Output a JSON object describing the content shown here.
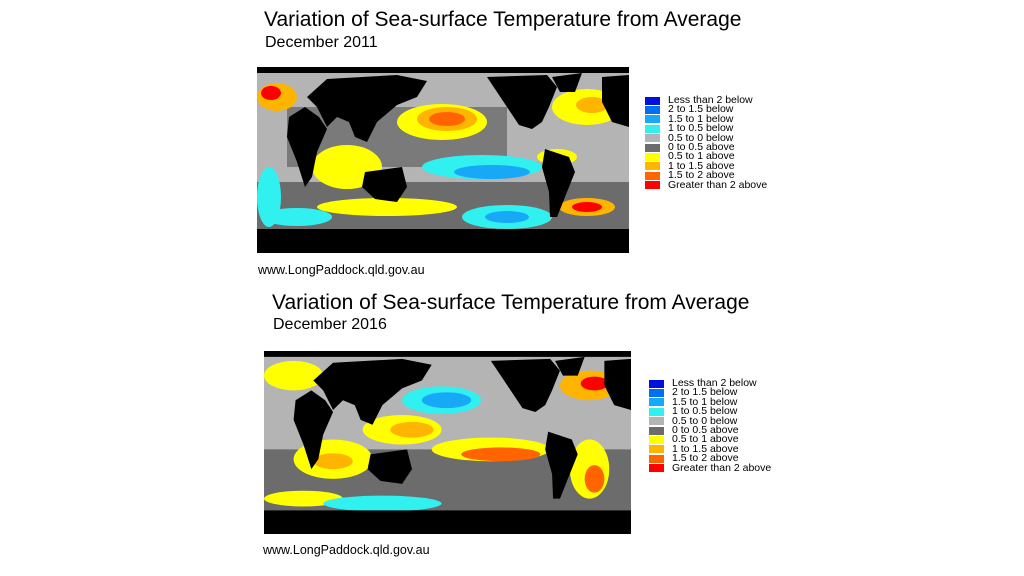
{
  "legend_items": [
    {
      "label": "Less than 2 below",
      "color": "#0010e0"
    },
    {
      "label": "2 to 1.5 below",
      "color": "#0070f0"
    },
    {
      "label": "1.5 to 1 below",
      "color": "#18a8f8"
    },
    {
      "label": "1 to 0.5 below",
      "color": "#30f0f0"
    },
    {
      "label": "0.5 to 0 below",
      "color": "#b4b4b4"
    },
    {
      "label": "0 to 0.5 above",
      "color": "#6c6c6c"
    },
    {
      "label": "0.5 to 1 above",
      "color": "#ffff00"
    },
    {
      "label": "1 to 1.5 above",
      "color": "#ffb400"
    },
    {
      "label": "1.5 to 2 above",
      "color": "#ff6400"
    },
    {
      "label": "Greater than 2 above",
      "color": "#ff0000"
    }
  ],
  "panels": [
    {
      "title": "Variation of Sea-surface Temperature from Average",
      "subtitle": "December 2011",
      "credit": "www.LongPaddock.qld.gov.au"
    },
    {
      "title": "Variation of Sea-surface Temperature from Average",
      "subtitle": "December 2016",
      "credit": "www.LongPaddock.qld.gov.au"
    }
  ]
}
